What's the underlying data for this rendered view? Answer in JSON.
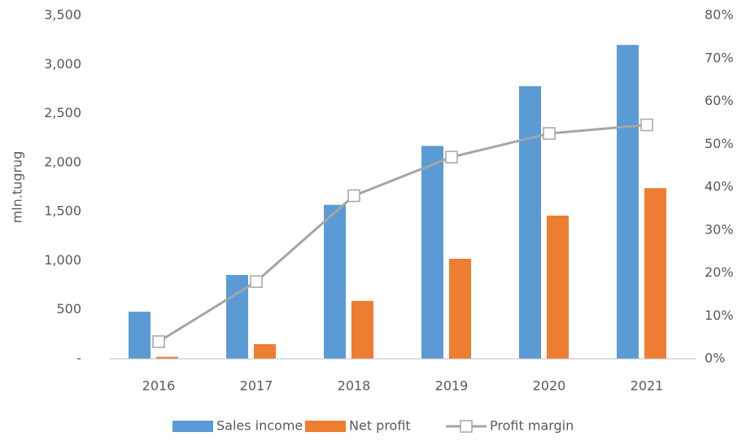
{
  "chart_data": {
    "type": "bar-line",
    "y_label": "mln.tugrug",
    "categories": [
      "2016",
      "2017",
      "2018",
      "2019",
      "2020",
      "2021"
    ],
    "series": [
      {
        "name": "Sales income",
        "color": "#5b9bd5",
        "type": "bar",
        "values": [
          480,
          855,
          1570,
          2170,
          2780,
          3200
        ]
      },
      {
        "name": "Net profit",
        "color": "#ed7d31",
        "type": "bar",
        "values": [
          20,
          150,
          590,
          1020,
          1460,
          1740
        ]
      },
      {
        "name": "Profit margin",
        "color": "#a5a5a5",
        "type": "line",
        "axis": "y2",
        "values": [
          4,
          18,
          38,
          47,
          52.5,
          54.5
        ]
      }
    ],
    "ylim": [
      0,
      3500
    ],
    "yticks": [
      {
        "value": 0,
        "label": "-"
      },
      500,
      {
        "value": 1000,
        "label": "1,000"
      },
      {
        "value": 1500,
        "label": "1,500"
      },
      {
        "value": 2000,
        "label": "2,000"
      },
      {
        "value": 2500,
        "label": "2,500"
      },
      {
        "value": 3000,
        "label": "3,000"
      },
      {
        "value": 3500,
        "label": "3,500"
      }
    ],
    "y2lim": [
      0,
      80
    ],
    "y2ticks": [
      {
        "value": 0,
        "label": "0%"
      },
      {
        "value": 10,
        "label": "10%"
      },
      {
        "value": 20,
        "label": "20%"
      },
      {
        "value": 30,
        "label": "30%"
      },
      {
        "value": 40,
        "label": "40%"
      },
      {
        "value": 50,
        "label": "50%"
      },
      {
        "value": 60,
        "label": "60%"
      },
      {
        "value": 70,
        "label": "70%"
      },
      {
        "value": 80,
        "label": "80%"
      }
    ],
    "legend": "bottom"
  }
}
